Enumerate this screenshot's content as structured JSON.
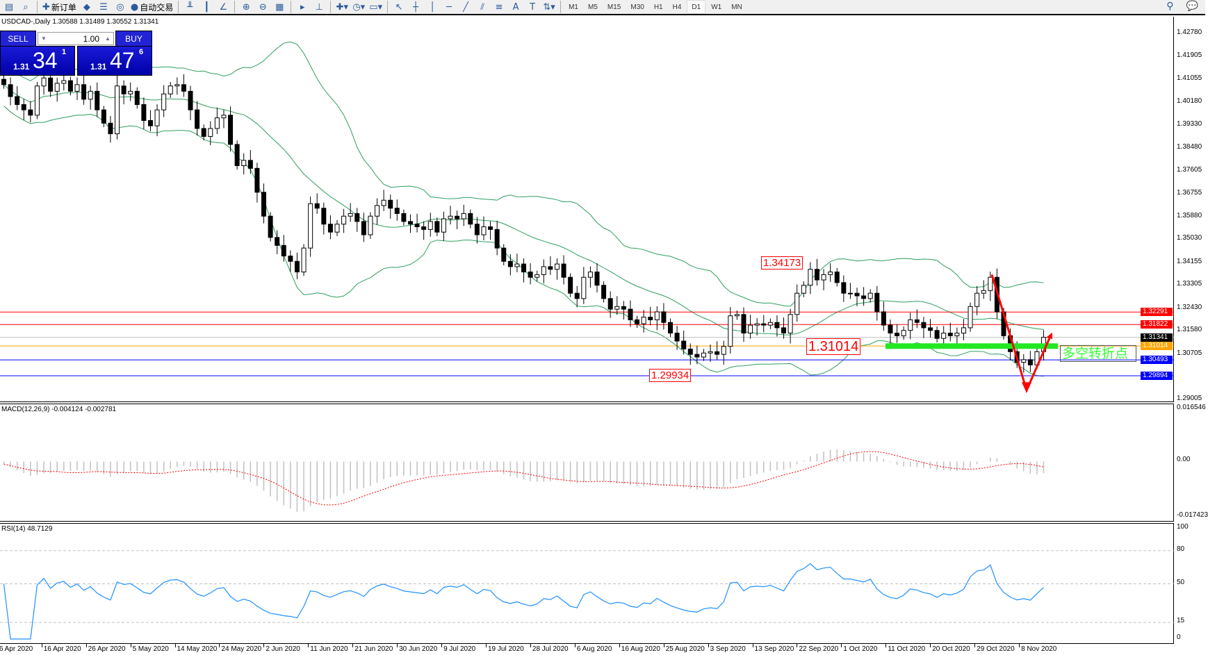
{
  "toolbar": {
    "items": [
      {
        "icon": "chart-list-icon",
        "glyph": "▤"
      },
      {
        "icon": "zoom-window-icon",
        "glyph": "⌕"
      },
      {
        "icon": "new-order-icon",
        "glyph": "✚",
        "label": "新订单"
      },
      {
        "icon": "market-watch-icon",
        "glyph": "◆"
      },
      {
        "icon": "navigator-icon",
        "glyph": "☰"
      },
      {
        "icon": "signals-icon",
        "glyph": "◎"
      },
      {
        "icon": "auto-trading-icon",
        "glyph": "●",
        "label": "自动交易"
      },
      {
        "icon": "bar-chart-icon",
        "glyph": "╨"
      },
      {
        "icon": "candlestick-icon",
        "glyph": "┃"
      },
      {
        "icon": "line-chart-icon",
        "glyph": "∠"
      },
      {
        "icon": "zoom-in-icon",
        "glyph": "⊕"
      },
      {
        "icon": "zoom-out-icon",
        "glyph": "⊖"
      },
      {
        "icon": "tile-windows-icon",
        "glyph": "▦"
      },
      {
        "icon": "auto-scroll-icon",
        "glyph": "▸"
      },
      {
        "icon": "chart-shift-icon",
        "glyph": "⊥"
      },
      {
        "icon": "indicators-icon",
        "glyph": "✚▾"
      },
      {
        "icon": "periods-icon",
        "glyph": "◷▾"
      },
      {
        "icon": "templates-icon",
        "glyph": "▭▾"
      },
      {
        "icon": "cursor-icon",
        "glyph": "↖"
      },
      {
        "icon": "crosshair-icon",
        "glyph": "┼"
      },
      {
        "icon": "vertical-line-icon",
        "glyph": "│"
      },
      {
        "icon": "horizontal-line-icon",
        "glyph": "─"
      },
      {
        "icon": "trendline-icon",
        "glyph": "╱"
      },
      {
        "icon": "equidistant-channel-icon",
        "glyph": "⫽"
      },
      {
        "icon": "fibonacci-icon",
        "glyph": "≡"
      },
      {
        "icon": "text-icon",
        "glyph": "A"
      },
      {
        "icon": "text-label-icon",
        "glyph": "T"
      },
      {
        "icon": "arrows-icon",
        "glyph": "⇅▾"
      }
    ],
    "timeframes": [
      "M1",
      "M5",
      "M15",
      "M30",
      "H1",
      "H4",
      "D1",
      "W1",
      "MN"
    ],
    "active_timeframe": "D1"
  },
  "chart": {
    "title": "USDCAD-,Daily  1.30588 1.31489 1.30552 1.31341",
    "one_click": {
      "sell": "SELL",
      "buy": "BUY",
      "lot": "1.00",
      "sell_prefix": "1.31",
      "sell_big": "34",
      "sell_pip": "1",
      "buy_prefix": "1.31",
      "buy_big": "47",
      "buy_pip": "6"
    },
    "price_axis": [
      "1.42780",
      "1.41905",
      "1.41055",
      "1.40180",
      "1.39330",
      "1.38480",
      "1.37605",
      "1.36755",
      "1.35880",
      "1.35030",
      "1.34155",
      "1.33305",
      "1.32430",
      "1.31580",
      "1.30705",
      "1.29005"
    ],
    "price_range": [
      1.29005,
      1.4278
    ],
    "levels": [
      {
        "price": "1.32291",
        "color": "#ff0000"
      },
      {
        "price": "1.31822",
        "color": "#ff0000"
      },
      {
        "price": "1.31341",
        "color": "#000000",
        "line": "#c0c0c0"
      },
      {
        "price": "1.31014",
        "color": "#ffa500"
      },
      {
        "price": "1.30493",
        "color": "#0000ff"
      },
      {
        "price": "1.29894",
        "color": "#0000ff"
      }
    ],
    "annotations": {
      "high": "1.34173",
      "mid": "1.31014",
      "low": "1.29934",
      "turn_text": "多空转折点"
    },
    "dates": [
      "6 Apr 2020",
      "16 Apr 2020",
      "26 Apr 2020",
      "5 May 2020",
      "14 May 2020",
      "24 May 2020",
      "2 Jun 2020",
      "11 Jun 2020",
      "21 Jun 2020",
      "30 Jun 2020",
      "9 Jul 2020",
      "19 Jul 2020",
      "28 Jul 2020",
      "6 Aug 2020",
      "16 Aug 2020",
      "25 Aug 2020",
      "3 Sep 2020",
      "13 Sep 2020",
      "22 Sep 2020",
      "1 Oct 2020",
      "11 Oct 2020",
      "20 Oct 2020",
      "29 Oct 2020",
      "8 Nov 2020"
    ]
  },
  "chart_data": {
    "type": "candlestick",
    "closes": [
      1.4085,
      1.404,
      1.401,
      1.399,
      1.397,
      1.408,
      1.411,
      1.406,
      1.409,
      1.41,
      1.406,
      1.4085,
      1.403,
      1.406,
      1.399,
      1.394,
      1.39,
      1.408,
      1.405,
      1.406,
      1.401,
      1.395,
      1.393,
      1.399,
      1.405,
      1.408,
      1.4085,
      1.406,
      1.399,
      1.392,
      1.389,
      1.392,
      1.396,
      1.397,
      1.386,
      1.378,
      1.38,
      1.377,
      1.368,
      1.359,
      1.351,
      1.348,
      1.344,
      1.342,
      1.338,
      1.347,
      1.3637,
      1.362,
      1.356,
      1.353,
      1.356,
      1.359,
      1.36,
      1.357,
      1.352,
      1.359,
      1.363,
      1.365,
      1.362,
      1.36,
      1.357,
      1.356,
      1.355,
      1.354,
      1.357,
      1.353,
      1.358,
      1.359,
      1.358,
      1.36,
      1.356,
      1.352,
      1.355,
      1.354,
      1.347,
      1.342,
      1.34,
      1.341,
      1.338,
      1.336,
      1.337,
      1.34,
      1.339,
      1.341,
      1.336,
      1.33,
      1.328,
      1.336,
      1.338,
      1.333,
      1.328,
      1.324,
      1.325,
      1.324,
      1.32,
      1.3185,
      1.321,
      1.32,
      1.323,
      1.319,
      1.315,
      1.312,
      1.309,
      1.307,
      1.306,
      1.3075,
      1.308,
      1.307,
      1.31,
      1.3215,
      1.322,
      1.315,
      1.318,
      1.3185,
      1.318,
      1.319,
      1.317,
      1.315,
      1.322,
      1.33,
      1.333,
      1.339,
      1.335,
      1.337,
      1.338,
      1.334,
      1.33,
      1.33,
      1.329,
      1.328,
      1.33,
      1.323,
      1.318,
      1.315,
      1.314,
      1.316,
      1.32,
      1.319,
      1.317,
      1.316,
      1.313,
      1.315,
      1.314,
      1.315,
      1.317,
      1.325,
      1.33,
      1.331,
      1.336,
      1.323,
      1.314,
      1.308,
      1.304,
      1.305,
      1.303,
      1.308,
      1.3134
    ],
    "indicators": {
      "bollinger": "green",
      "macd": {
        "title": "MACD(12,26,9) -0.004124 -0.002781",
        "axis": [
          "0.016546",
          "0.00",
          "-0.017423"
        ],
        "range": [
          -0.017423,
          0.016546
        ]
      },
      "rsi": {
        "title": "RSI(14) 48.7129",
        "axis": [
          "100",
          "80",
          "50",
          "15",
          "0"
        ],
        "levels": [
          80,
          50,
          15
        ]
      }
    }
  }
}
